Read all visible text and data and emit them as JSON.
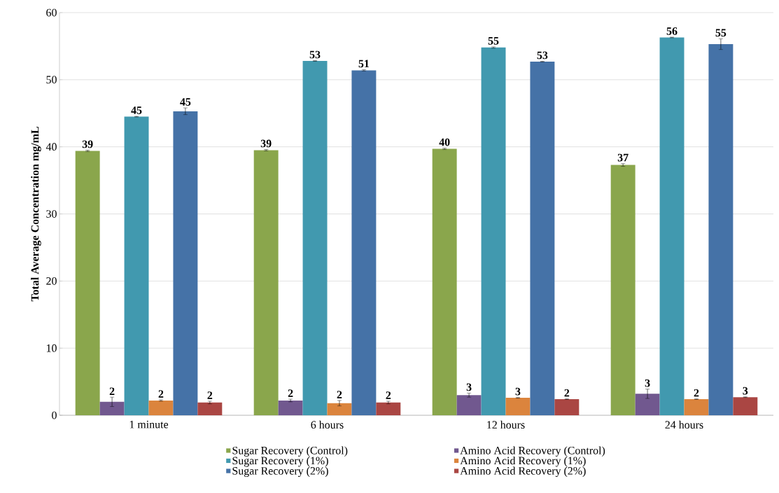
{
  "chart_data": {
    "type": "bar",
    "ylabel": "Total Average Concentration mg/mL",
    "categories": [
      "1 minute",
      "6 hours",
      "12 hours",
      "24 hours"
    ],
    "series": [
      {
        "name": "Sugar Recovery (Control)",
        "color": "#8aa64c",
        "values": [
          39.4,
          39.5,
          39.7,
          37.3
        ],
        "errors": [
          0.1,
          0.1,
          0.1,
          0.2
        ],
        "value_labels": [
          "39",
          "39",
          "40",
          "37"
        ]
      },
      {
        "name": "Amino Acid Recovery (Control)",
        "color": "#71588f",
        "values": [
          2.0,
          2.2,
          3.0,
          3.2
        ],
        "errors": [
          0.7,
          0.2,
          0.3,
          0.7
        ],
        "value_labels": [
          "2",
          "2",
          "3",
          "3"
        ]
      },
      {
        "name": "Sugar Recovery (1%)",
        "color": "#4199af",
        "values": [
          44.5,
          52.8,
          54.8,
          56.3
        ],
        "errors": [
          0.05,
          0.05,
          0.1,
          0.05
        ],
        "value_labels": [
          "45",
          "53",
          "55",
          "56"
        ]
      },
      {
        "name": "Amino Acid Recovery (1%)",
        "color": "#db843d",
        "values": [
          2.2,
          1.8,
          2.6,
          2.4
        ],
        "errors": [
          0.1,
          0.4,
          0.05,
          0.05
        ],
        "value_labels": [
          "2",
          "2",
          "3",
          "2"
        ]
      },
      {
        "name": "Sugar Recovery (2%)",
        "color": "#4572a7",
        "values": [
          45.3,
          51.4,
          52.7,
          55.3
        ],
        "errors": [
          0.5,
          0.1,
          0.05,
          0.8
        ],
        "value_labels": [
          "45",
          "51",
          "53",
          "55"
        ]
      },
      {
        "name": "Amino Acid  Recovery  (2%)",
        "color": "#aa4643",
        "values": [
          1.9,
          1.9,
          2.4,
          2.7
        ],
        "errors": [
          0.2,
          0.2,
          0.05,
          0.05
        ],
        "value_labels": [
          "2",
          "2",
          "2",
          "3"
        ]
      }
    ],
    "ylim": [
      0,
      60
    ],
    "yticks": [
      0,
      10,
      20,
      30,
      40,
      50,
      60
    ],
    "grid": "y",
    "legend": "bottom"
  }
}
